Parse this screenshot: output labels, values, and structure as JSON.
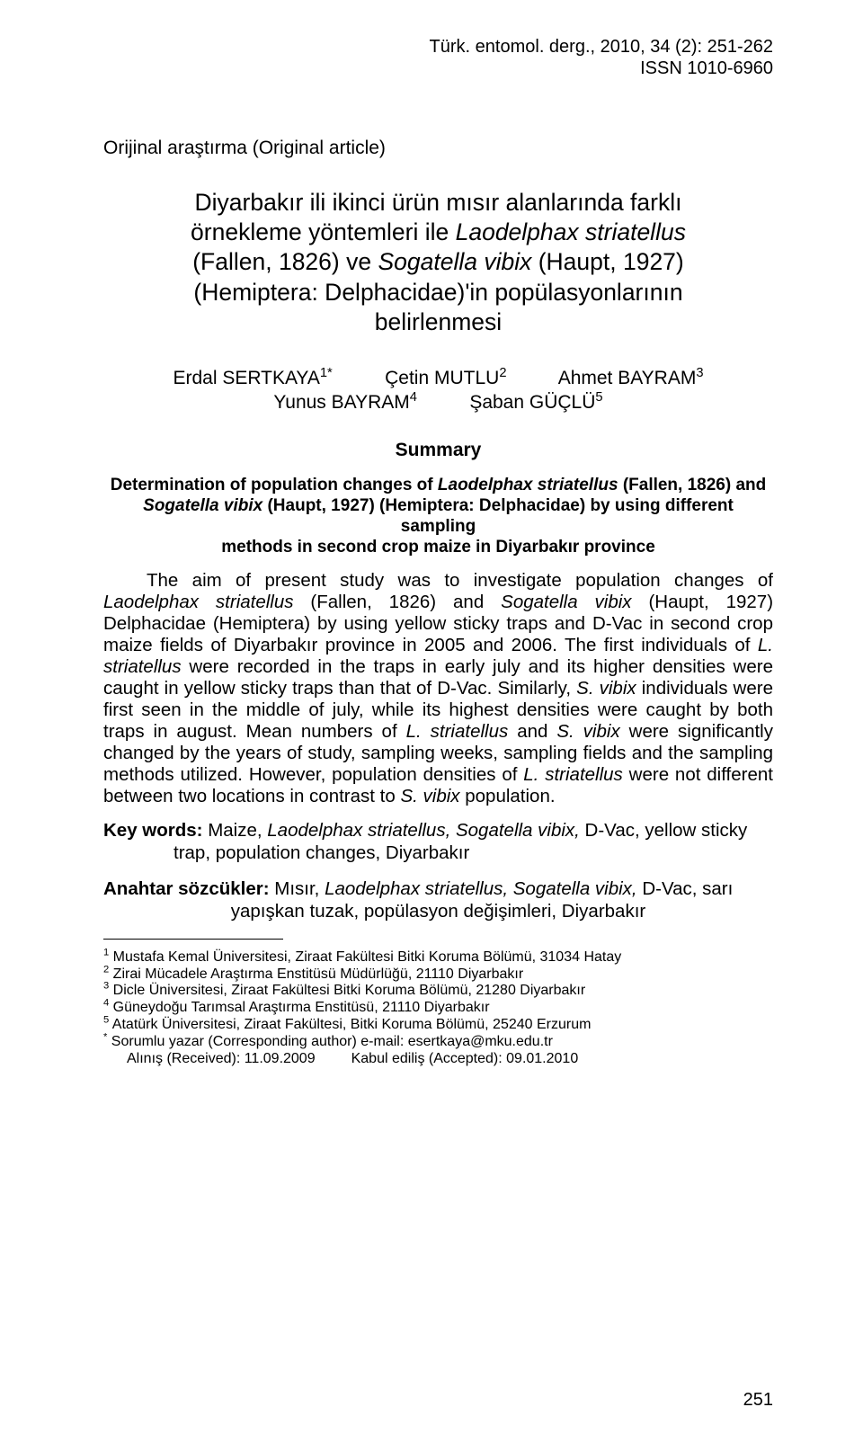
{
  "header": {
    "journal": "Türk. entomol. derg., 2010, 34 (2): 251-262",
    "issn": "ISSN 1010-6960"
  },
  "article_type": "Orijinal araştırma (Original article)",
  "title_tr": {
    "line1": "Diyarbakır ili ikinci ürün mısır alanlarında farklı",
    "line2_a": "örnekleme yöntemleri ile ",
    "line2_b": "Laodelphax striatellus",
    "line3_a": "(Fallen, 1826) ve ",
    "line3_b": "Sogatella vibix ",
    "line3_c": "(Haupt, 1927)",
    "line4": "(Hemiptera: Delphacidae)'in popülasyonlarının",
    "line5": "belirlenmesi"
  },
  "authors": {
    "a1_name": "Erdal SERTKAYA",
    "a1_sup": "1*",
    "a2_name": "Çetin MUTLU",
    "a2_sup": "2",
    "a3_name": "Ahmet BAYRAM",
    "a3_sup": "3",
    "a4_name": "Yunus BAYRAM",
    "a4_sup": "4",
    "a5_name": "Şaban GÜÇLÜ",
    "a5_sup": "5"
  },
  "summary_heading": "Summary",
  "title_en": {
    "l1_a": "Determination of population changes of ",
    "l1_b": "Laodelphax striatellus ",
    "l1_c": "(Fallen, 1826) and",
    "l2_a": "Sogatella vibix ",
    "l2_b": "(Haupt, 1927) (Hemiptera: Delphacidae) by using different sampling",
    "l3": "methods in second crop maize in Diyarbakır province"
  },
  "abstract": {
    "p1_a": "The aim of present study was to investigate population changes of ",
    "p1_b": "Laodelphax striatellus ",
    "p1_c": "(Fallen, 1826) and ",
    "p1_d": "Sogatella vibix ",
    "p1_e": "(Haupt, 1927) Delphacidae (Hemiptera) by using yellow sticky traps and D-Vac in second crop maize fields of Diyarbakır province in 2005 and 2006.  The first individuals of ",
    "p1_f": "L. striatellus ",
    "p1_g": "were recorded in the traps in early july and its higher densities were caught in yellow sticky traps than that of D-Vac. Similarly, ",
    "p1_h": "S. vibix ",
    "p1_i": "individuals were first seen in the middle of july, while its highest densities were caught by both traps in august. Mean numbers of ",
    "p1_j": "L. striatellus ",
    "p1_k": "and ",
    "p1_l": "S. vibix ",
    "p1_m": "were significantly changed by the years of study, sampling weeks, sampling fields and the sampling methods utilized.  However, population densities of ",
    "p1_n": "L. striatellus ",
    "p1_o": "were not different between two locations in contrast to ",
    "p1_p": "S. vibix ",
    "p1_q": "population."
  },
  "keywords": {
    "label": "Key words: ",
    "l1_a": "Maize, ",
    "l1_b": "Laodelphax striatellus, Sogatella vibix, ",
    "l1_c": "D-Vac, yellow sticky",
    "l2": "trap, population changes, Diyarbakır"
  },
  "anahtar": {
    "label": "Anahtar sözcükler: ",
    "l1_a": "Mısır, ",
    "l1_b": "Laodelphax striatellus, Sogatella vibix, ",
    "l1_c": "D-Vac, sarı",
    "l2": "yapışkan tuzak, popülasyon değişimleri, Diyarbakır"
  },
  "footnotes": {
    "f1_sup": "1",
    "f1": " Mustafa Kemal Üniversitesi, Ziraat Fakültesi Bitki Koruma Bölümü, 31034 Hatay",
    "f2_sup": "2",
    "f2": " Zirai Mücadele Araştırma Enstitüsü Müdürlüğü, 21110 Diyarbakır",
    "f3_sup": "3",
    "f3": " Dicle Üniversitesi, Ziraat Fakültesi Bitki Koruma Bölümü, 21280 Diyarbakır",
    "f4_sup": "4",
    "f4": " Güneydoğu Tarımsal Araştırma Enstitüsü, 21110  Diyarbakır",
    "f5_sup": "5",
    "f5": " Atatürk Üniversitesi, Ziraat Fakültesi, Bitki Koruma Bölümü, 25240  Erzurum",
    "fc_sup": "*",
    "fc": " Sorumlu yazar (Corresponding author) e-mail: esertkaya@mku.edu.tr",
    "received": "Alınış (Received): 11.09.2009         Kabul ediliş (Accepted): 09.01.2010"
  },
  "page_number": "251"
}
